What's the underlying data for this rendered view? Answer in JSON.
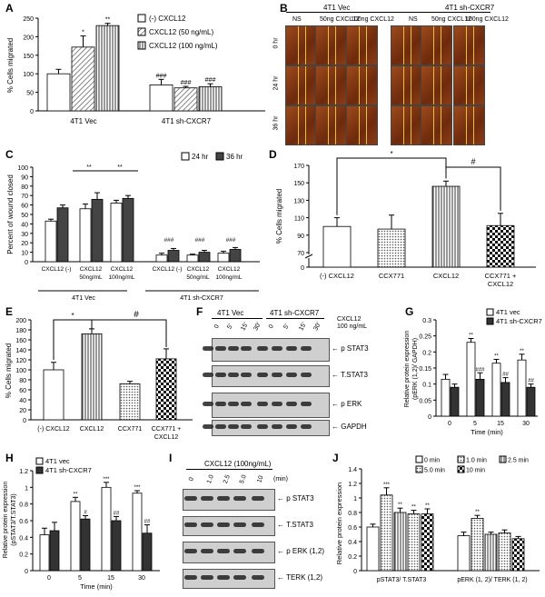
{
  "panels": {
    "A": "A",
    "B": "B",
    "C": "C",
    "D": "D",
    "E": "E",
    "F": "F",
    "G": "G",
    "H": "H",
    "I": "I",
    "J": "J"
  },
  "A": {
    "ylabel": "% Cells migrated",
    "groups": [
      "4T1 Vec",
      "4T1 sh-CXCR7"
    ],
    "legend": [
      "(-) CXCL12",
      "CXCL12 (50 ng/mL)",
      "CXCL12 (100 ng/mL)"
    ],
    "ticks": [
      "0",
      "50",
      "100",
      "150",
      "200",
      "250"
    ],
    "ylim": [
      0,
      250
    ],
    "series": [
      {
        "values": [
          100,
          70
        ]
      },
      {
        "values": [
          172,
          62
        ]
      },
      {
        "values": [
          230,
          65
        ]
      }
    ],
    "errors": [
      [
        12,
        15
      ],
      [
        30,
        4
      ],
      [
        6,
        8
      ]
    ],
    "sig": [
      [
        "",
        "###"
      ],
      [
        "*",
        "###"
      ],
      [
        "**",
        "###"
      ]
    ]
  },
  "B": {
    "groups": [
      "4T1 Vec",
      "4T1 sh-CXCR7"
    ],
    "cols": [
      "NS",
      "50ng CXCL12",
      "100ng CXCL12",
      "NS",
      "50ng CXCL12",
      "100ng CXCL12"
    ],
    "rows": [
      "0 hr",
      "24 hr",
      "36 hr"
    ]
  },
  "C": {
    "ylabel": "Percent of wound closed",
    "legend": [
      "24 hr",
      "36 hr"
    ],
    "ticks": [
      "0",
      "10",
      "20",
      "30",
      "40",
      "50",
      "60",
      "70",
      "80",
      "90",
      "100"
    ],
    "ylim": [
      0,
      100
    ],
    "cats": [
      "CXCL12 (-)",
      "CXCL12 50ng/mL",
      "CXCL12 100ng/mL",
      "CXCL12 (-)",
      "CXCL12 50ng/mL",
      "CXCL12 100ng/mL"
    ],
    "cat_lines": [
      [
        "CXCL12 (-)",
        ""
      ],
      [
        "CXCL12",
        "50ng/mL"
      ],
      [
        "CXCL12",
        "100ng/mL"
      ],
      [
        "CXCL12 (-)",
        ""
      ],
      [
        "CXCL12",
        "50ng/mL"
      ],
      [
        "CXCL12",
        "100ng/mL"
      ]
    ],
    "groups": [
      "4T1 Vec",
      "4T1 sh-CXCR7"
    ],
    "series": [
      {
        "name": "24 hr",
        "values": [
          43,
          56,
          62,
          7,
          7,
          9
        ]
      },
      {
        "name": "36 hr",
        "values": [
          57,
          66,
          67,
          12,
          10,
          13
        ]
      }
    ],
    "errors": [
      [
        2,
        5,
        3,
        2,
        1,
        2
      ],
      [
        3,
        7,
        3,
        2,
        2,
        2
      ]
    ],
    "sig": [
      "**",
      "**",
      "###",
      "###",
      "###"
    ]
  },
  "D": {
    "ylabel": "% Cells migrated",
    "ticks": [
      "0",
      "70",
      "90",
      "110",
      "130",
      "150",
      "170"
    ],
    "cats": [
      "(-) CXCL12",
      "CCX771",
      "CXCL12",
      "CCX771 + CXCL12"
    ],
    "values": [
      100,
      97,
      146,
      101
    ],
    "errors": [
      10,
      16,
      6,
      14
    ],
    "sig": [
      "*",
      "#"
    ]
  },
  "E": {
    "ylabel": "% Cells migrated",
    "ticks": [
      "0",
      "20",
      "40",
      "60",
      "80",
      "100",
      "120",
      "140",
      "160",
      "180",
      "200"
    ],
    "ylim": [
      0,
      200
    ],
    "cats": [
      "(-) CXCL12",
      "CXCL12",
      "CCX771",
      "CCX771 + CXCL12"
    ],
    "values": [
      100,
      172,
      72,
      122
    ],
    "errors": [
      15,
      10,
      5,
      20
    ],
    "sig": [
      "*",
      "#"
    ]
  },
  "F": {
    "groups": [
      "4T1 Vec",
      "4T1 sh-CXCR7"
    ],
    "times": [
      "0",
      "5'",
      "15'",
      "30'",
      "0",
      "5'",
      "15'",
      "30'"
    ],
    "treatment": [
      "CXCL12",
      "100 ng/mL"
    ],
    "bands": [
      "p STAT3",
      "T.STAT3",
      "p ERK",
      "GAPDH"
    ]
  },
  "G": {
    "ylabel": [
      "Relative protein expression",
      "(pERK (1,2)/ GAPDH)"
    ],
    "xlabel": "Time (min)",
    "legend": [
      "4T1 vec",
      "4T1 sh-CXCR7"
    ],
    "ticks": [
      "0",
      "0.05",
      "0.1",
      "0.15",
      "0.2",
      "0.25",
      "0.3"
    ],
    "ylim": [
      0,
      0.3
    ],
    "cats": [
      "0",
      "5",
      "15",
      "30"
    ],
    "series": [
      {
        "values": [
          0.115,
          0.23,
          0.165,
          0.175
        ]
      },
      {
        "values": [
          0.09,
          0.115,
          0.105,
          0.09
        ]
      }
    ],
    "errors": [
      [
        0.015,
        0.012,
        0.012,
        0.018
      ],
      [
        0.01,
        0.02,
        0.015,
        0.01
      ]
    ],
    "sig": [
      [
        "",
        "**",
        "**",
        "**"
      ],
      [
        "",
        "###",
        "##",
        "##"
      ]
    ]
  },
  "H": {
    "ylabel": [
      "Relative protein expression",
      "(pSTAT3/T.STAT3)"
    ],
    "xlabel": "Time (min)",
    "legend": [
      "4T1 vec",
      "4T1 sh-CXCR7"
    ],
    "ticks": [
      "0",
      "0.2",
      "0.4",
      "0.6",
      "0.8",
      "1",
      "1.2"
    ],
    "ylim": [
      0,
      1.2
    ],
    "cats": [
      "0",
      "5",
      "15",
      "30"
    ],
    "series": [
      {
        "values": [
          0.43,
          0.83,
          1.0,
          0.93
        ]
      },
      {
        "values": [
          0.48,
          0.62,
          0.6,
          0.45
        ]
      }
    ],
    "errors": [
      [
        0.08,
        0.05,
        0.06,
        0.03
      ],
      [
        0.1,
        0.04,
        0.05,
        0.1
      ]
    ],
    "sig": [
      [
        "",
        "**",
        "***",
        "***"
      ],
      [
        "",
        "#",
        "##",
        "##"
      ]
    ]
  },
  "I": {
    "treatment": "CXCL12 (100ng/mL)",
    "times": [
      "0",
      "1.0",
      "2.5",
      "5.0",
      "10",
      "(min)"
    ],
    "bands": [
      "p STAT3",
      "T.STAT3",
      "p ERK (1,2)",
      "TERK (1,2)"
    ]
  },
  "J": {
    "ylabel": "Relative protein expression",
    "ticks": [
      "0",
      "0.2",
      "0.4",
      "0.6",
      "0.8",
      "1",
      "1.2",
      "1.4"
    ],
    "ylim": [
      0,
      1.4
    ],
    "legend": [
      "0 min",
      "1.0 min",
      "2.5 min",
      "5.0 min",
      "10 min"
    ],
    "groups": [
      "pSTAT3/ T.STAT3",
      "pERK (1, 2)/ TERK (1, 2)"
    ],
    "series": [
      {
        "values": [
          0.6,
          0.48
        ]
      },
      {
        "values": [
          1.04,
          0.72
        ]
      },
      {
        "values": [
          0.8,
          0.5
        ]
      },
      {
        "values": [
          0.78,
          0.52
        ]
      },
      {
        "values": [
          0.78,
          0.44
        ]
      }
    ],
    "errors": [
      [
        0.04,
        0.05
      ],
      [
        0.1,
        0.04
      ],
      [
        0.06,
        0.03
      ],
      [
        0.05,
        0.04
      ],
      [
        0.07,
        0.03
      ]
    ],
    "sig": [
      [
        "",
        ""
      ],
      [
        "***",
        "**"
      ],
      [
        "**",
        ""
      ],
      [
        "**",
        ""
      ],
      [
        "**",
        ""
      ]
    ]
  }
}
